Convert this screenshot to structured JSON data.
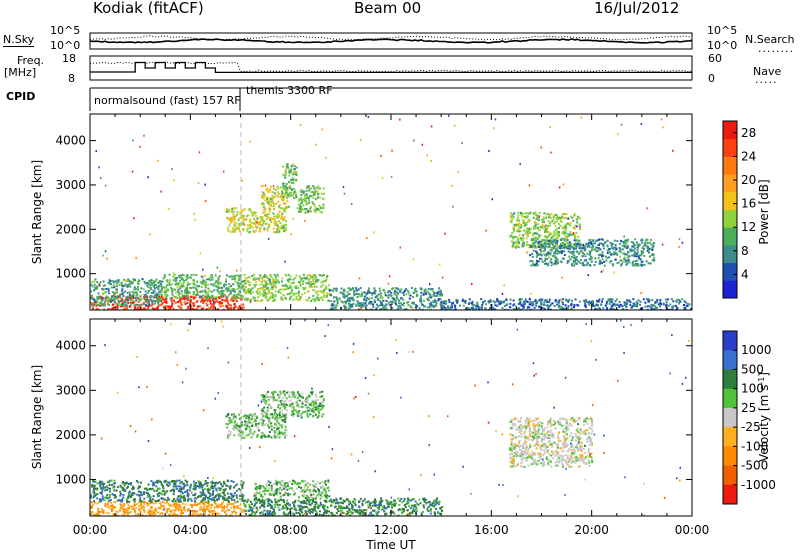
{
  "header": {
    "station": "Kodiak (fitACF)",
    "beam": "Beam 00",
    "date": "16/Jul/2012"
  },
  "summary_panels": {
    "nsky_label": "N.Sky",
    "nsearch_label": "N.Search",
    "noise_ticks": [
      "10^5",
      "10^0"
    ],
    "freq_label_1": "Freq.",
    "freq_label_2": "[MHz]",
    "freq_ticks": [
      "18",
      "8"
    ],
    "nave_ticks": [
      "60",
      "0"
    ],
    "nave_label": "Nave",
    "cpid_label": "CPID",
    "cpid_segments": [
      {
        "name": "normalsound (fast)",
        "code": "157 RF",
        "start_h": 0,
        "end_h": 6
      },
      {
        "name": "themis",
        "code": "3300 RF",
        "start_h": 6,
        "end_h": 24
      }
    ],
    "freq_blocks": [
      [
        0,
        1.8,
        11.2
      ],
      [
        1.8,
        2.2,
        15.5
      ],
      [
        2.2,
        2.6,
        13
      ],
      [
        2.6,
        3.0,
        15.5
      ],
      [
        3.0,
        3.4,
        13
      ],
      [
        3.4,
        3.8,
        15.5
      ],
      [
        3.8,
        4.2,
        13
      ],
      [
        4.2,
        4.6,
        15.5
      ],
      [
        4.6,
        5.0,
        13
      ],
      [
        5.0,
        24,
        11
      ]
    ]
  },
  "chart_data": [
    {
      "type": "heatmap",
      "title": "",
      "xlabel": "",
      "ylabel": "Slant Range [km]",
      "x_unit": "hours UT",
      "xlim": [
        0,
        24
      ],
      "ylim": [
        180,
        4600
      ],
      "yticks": [
        "1000",
        "2000",
        "3000",
        "4000"
      ],
      "colorbar": {
        "label": "Power [dB]",
        "ticks": [
          "4",
          "8",
          "12",
          "16",
          "20",
          "24",
          "28"
        ],
        "range": [
          0,
          30
        ],
        "colors": [
          "#1c22d6",
          "#1f4fb0",
          "#3d8c8c",
          "#4caf5a",
          "#8fd43c",
          "#f2c21a",
          "#ffa020",
          "#ff7a10",
          "#ff4010",
          "#ee1a10"
        ]
      },
      "regions": [
        {
          "t0": 0.0,
          "t1": 6.1,
          "r0": 180,
          "r1": 520,
          "p": 27
        },
        {
          "t0": 0.0,
          "t1": 2.8,
          "r0": 300,
          "r1": 900,
          "p": 9
        },
        {
          "t0": 2.8,
          "t1": 6.1,
          "r0": 450,
          "r1": 1000,
          "p": 11
        },
        {
          "t0": 6.1,
          "t1": 9.5,
          "r0": 400,
          "r1": 1000,
          "p": 13
        },
        {
          "t0": 9.5,
          "t1": 14.0,
          "r0": 180,
          "r1": 700,
          "p": 8
        },
        {
          "t0": 14.0,
          "t1": 24.0,
          "r0": 180,
          "r1": 450,
          "p": 6
        },
        {
          "t0": 5.4,
          "t1": 7.8,
          "r0": 1950,
          "r1": 2500,
          "p": 15
        },
        {
          "t0": 6.8,
          "t1": 7.9,
          "r0": 2500,
          "r1": 3000,
          "p": 15
        },
        {
          "t0": 7.6,
          "t1": 8.2,
          "r0": 2700,
          "r1": 3500,
          "p": 12
        },
        {
          "t0": 8.2,
          "t1": 9.3,
          "r0": 2400,
          "r1": 3000,
          "p": 12
        },
        {
          "t0": 16.7,
          "t1": 19.5,
          "r0": 1600,
          "r1": 2400,
          "p": 13
        },
        {
          "t0": 17.5,
          "t1": 22.5,
          "r0": 1200,
          "r1": 1800,
          "p": 8
        }
      ]
    },
    {
      "type": "heatmap",
      "title": "",
      "xlabel": "Time UT",
      "ylabel": "Slant Range [km]",
      "x_unit": "hours UT",
      "xlim": [
        0,
        24
      ],
      "ylim": [
        180,
        4600
      ],
      "yticks": [
        "1000",
        "2000",
        "3000",
        "4000"
      ],
      "xticks": [
        "00:00",
        "04:00",
        "08:00",
        "12:00",
        "16:00",
        "20:00",
        "00:00"
      ],
      "colorbar": {
        "label": "Velocity [m s^-1]",
        "ticks": [
          "1000",
          "500",
          "100",
          "25",
          "-25",
          "-100",
          "-500",
          "-1000"
        ],
        "range": [
          -1000,
          1000
        ],
        "colors": [
          "#2a3ec9",
          "#3a6ed0",
          "#2e7d3a",
          "#52c23a",
          "#c8c8c8",
          "#ffb020",
          "#ff8a00",
          "#f06000",
          "#ee1a10"
        ]
      },
      "regions": [
        {
          "t0": 0.0,
          "t1": 6.1,
          "r0": 180,
          "r1": 520,
          "v": -300
        },
        {
          "t0": 0.0,
          "t1": 6.1,
          "r0": 520,
          "r1": 1000,
          "v": 80
        },
        {
          "t0": 6.1,
          "t1": 14.0,
          "r0": 180,
          "r1": 600,
          "v": 60
        },
        {
          "t0": 6.5,
          "t1": 9.5,
          "r0": 600,
          "r1": 1000,
          "v": 0
        },
        {
          "t0": 5.4,
          "t1": 7.8,
          "r0": 1950,
          "r1": 2500,
          "v": 0
        },
        {
          "t0": 6.8,
          "t1": 9.3,
          "r0": 2400,
          "r1": 3000,
          "v": 0
        },
        {
          "t0": 16.7,
          "t1": 20.0,
          "r0": 1300,
          "r1": 2400,
          "v": -60
        }
      ]
    }
  ]
}
